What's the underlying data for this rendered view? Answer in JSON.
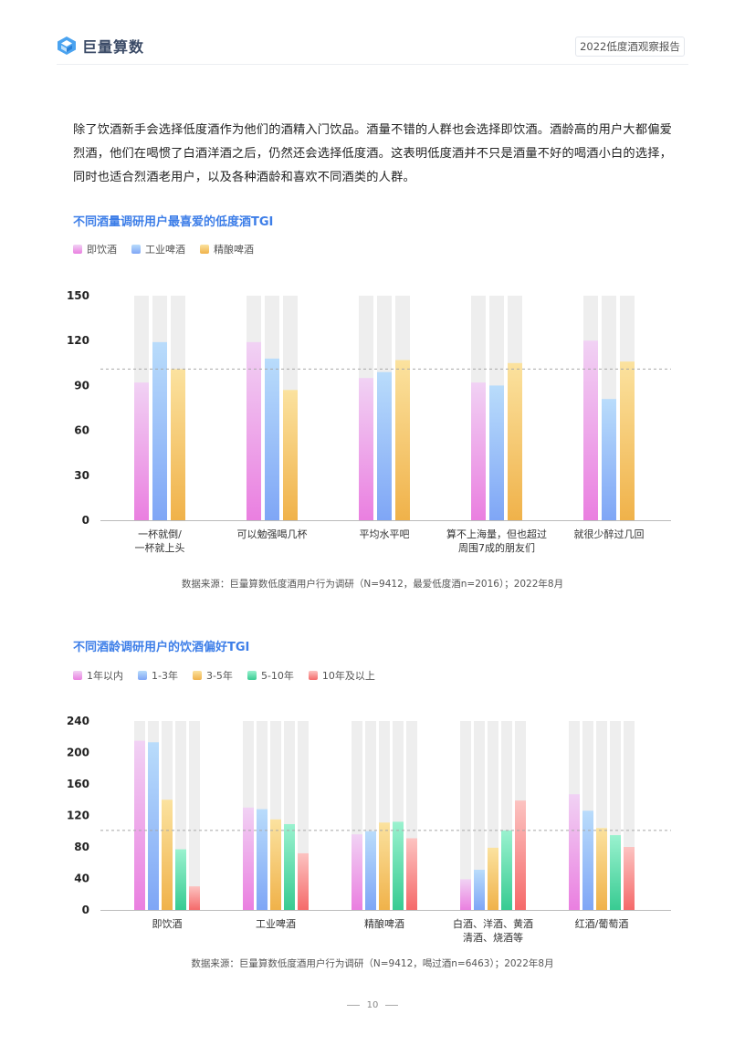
{
  "header": {
    "logo_text": "巨量算数",
    "report_title": "2022低度酒观察报告"
  },
  "intro_text": "除了饮酒新手会选择低度酒作为他们的酒精入门饮品。酒量不错的人群也会选择即饮酒。酒龄高的用户大都偏爱烈酒，他们在喝惯了白酒洋酒之后，仍然还会选择低度酒。这表明低度酒并不只是酒量不好的喝酒小白的选择，同时也适合烈酒老用户，以及各种酒龄和喜欢不同酒类的人群。",
  "colors": {
    "accent_title": "#3d7ee8",
    "track": "#eeeeee",
    "pink": [
      "#f1d2f4",
      "#ea7fe0"
    ],
    "blue": [
      "#b9dcfb",
      "#7fa6f6"
    ],
    "yellow": [
      "#fbe29f",
      "#f0b24a"
    ],
    "green": [
      "#9af2cf",
      "#38cb92"
    ],
    "red": [
      "#fcc3c1",
      "#f56a6a"
    ]
  },
  "chart_data": [
    {
      "type": "bar",
      "title": "不同酒量调研用户最喜爱的低度酒TGI",
      "categories": [
        "一杯就倒/\n一杯就上头",
        "可以勉强喝几杯",
        "平均水平吧",
        "算不上海量，但也超过\n周围7成的朋友们",
        "就很少醉过几回"
      ],
      "series": [
        {
          "name": "即饮酒",
          "color": "pink",
          "values": [
            92,
            119,
            95,
            92,
            120
          ]
        },
        {
          "name": "工业啤酒",
          "color": "blue",
          "values": [
            119,
            108,
            99,
            90,
            81
          ]
        },
        {
          "name": "精酿啤酒",
          "color": "yellow",
          "values": [
            101,
            87,
            107,
            105,
            106
          ]
        }
      ],
      "ylim": [
        0,
        150
      ],
      "yticks": [
        0,
        30,
        60,
        90,
        120,
        150
      ],
      "reference_line": 101,
      "legend": "top-left",
      "grid": false,
      "source": "数据来源：巨量算数低度酒用户行为调研（N=9412，最爱低度酒n=2016）；2022年8月"
    },
    {
      "type": "bar",
      "title": "不同酒龄调研用户的饮酒偏好TGI",
      "categories": [
        "即饮酒",
        "工业啤酒",
        "精酿啤酒",
        "白酒、洋酒、黄酒\n清酒、烧酒等",
        "红酒/葡萄酒"
      ],
      "series": [
        {
          "name": "1年以内",
          "color": "pink",
          "values": [
            215,
            130,
            96,
            39,
            147
          ]
        },
        {
          "name": "1-3年",
          "color": "blue",
          "values": [
            213,
            128,
            100,
            51,
            126
          ]
        },
        {
          "name": "3-5年",
          "color": "yellow",
          "values": [
            140,
            115,
            111,
            79,
            104
          ]
        },
        {
          "name": "5-10年",
          "color": "green",
          "values": [
            77,
            109,
            112,
            101,
            95
          ]
        },
        {
          "name": "10年及以上",
          "color": "red",
          "values": [
            30,
            72,
            91,
            139,
            80
          ]
        }
      ],
      "ylim": [
        0,
        240
      ],
      "yticks": [
        0,
        40,
        80,
        120,
        160,
        200,
        240
      ],
      "reference_line": 101,
      "legend": "top-left",
      "grid": false,
      "source": "数据来源：巨量算数低度酒用户行为调研（N=9412，喝过酒n=6463）；2022年8月"
    }
  ],
  "footer": {
    "page_number": "10"
  }
}
